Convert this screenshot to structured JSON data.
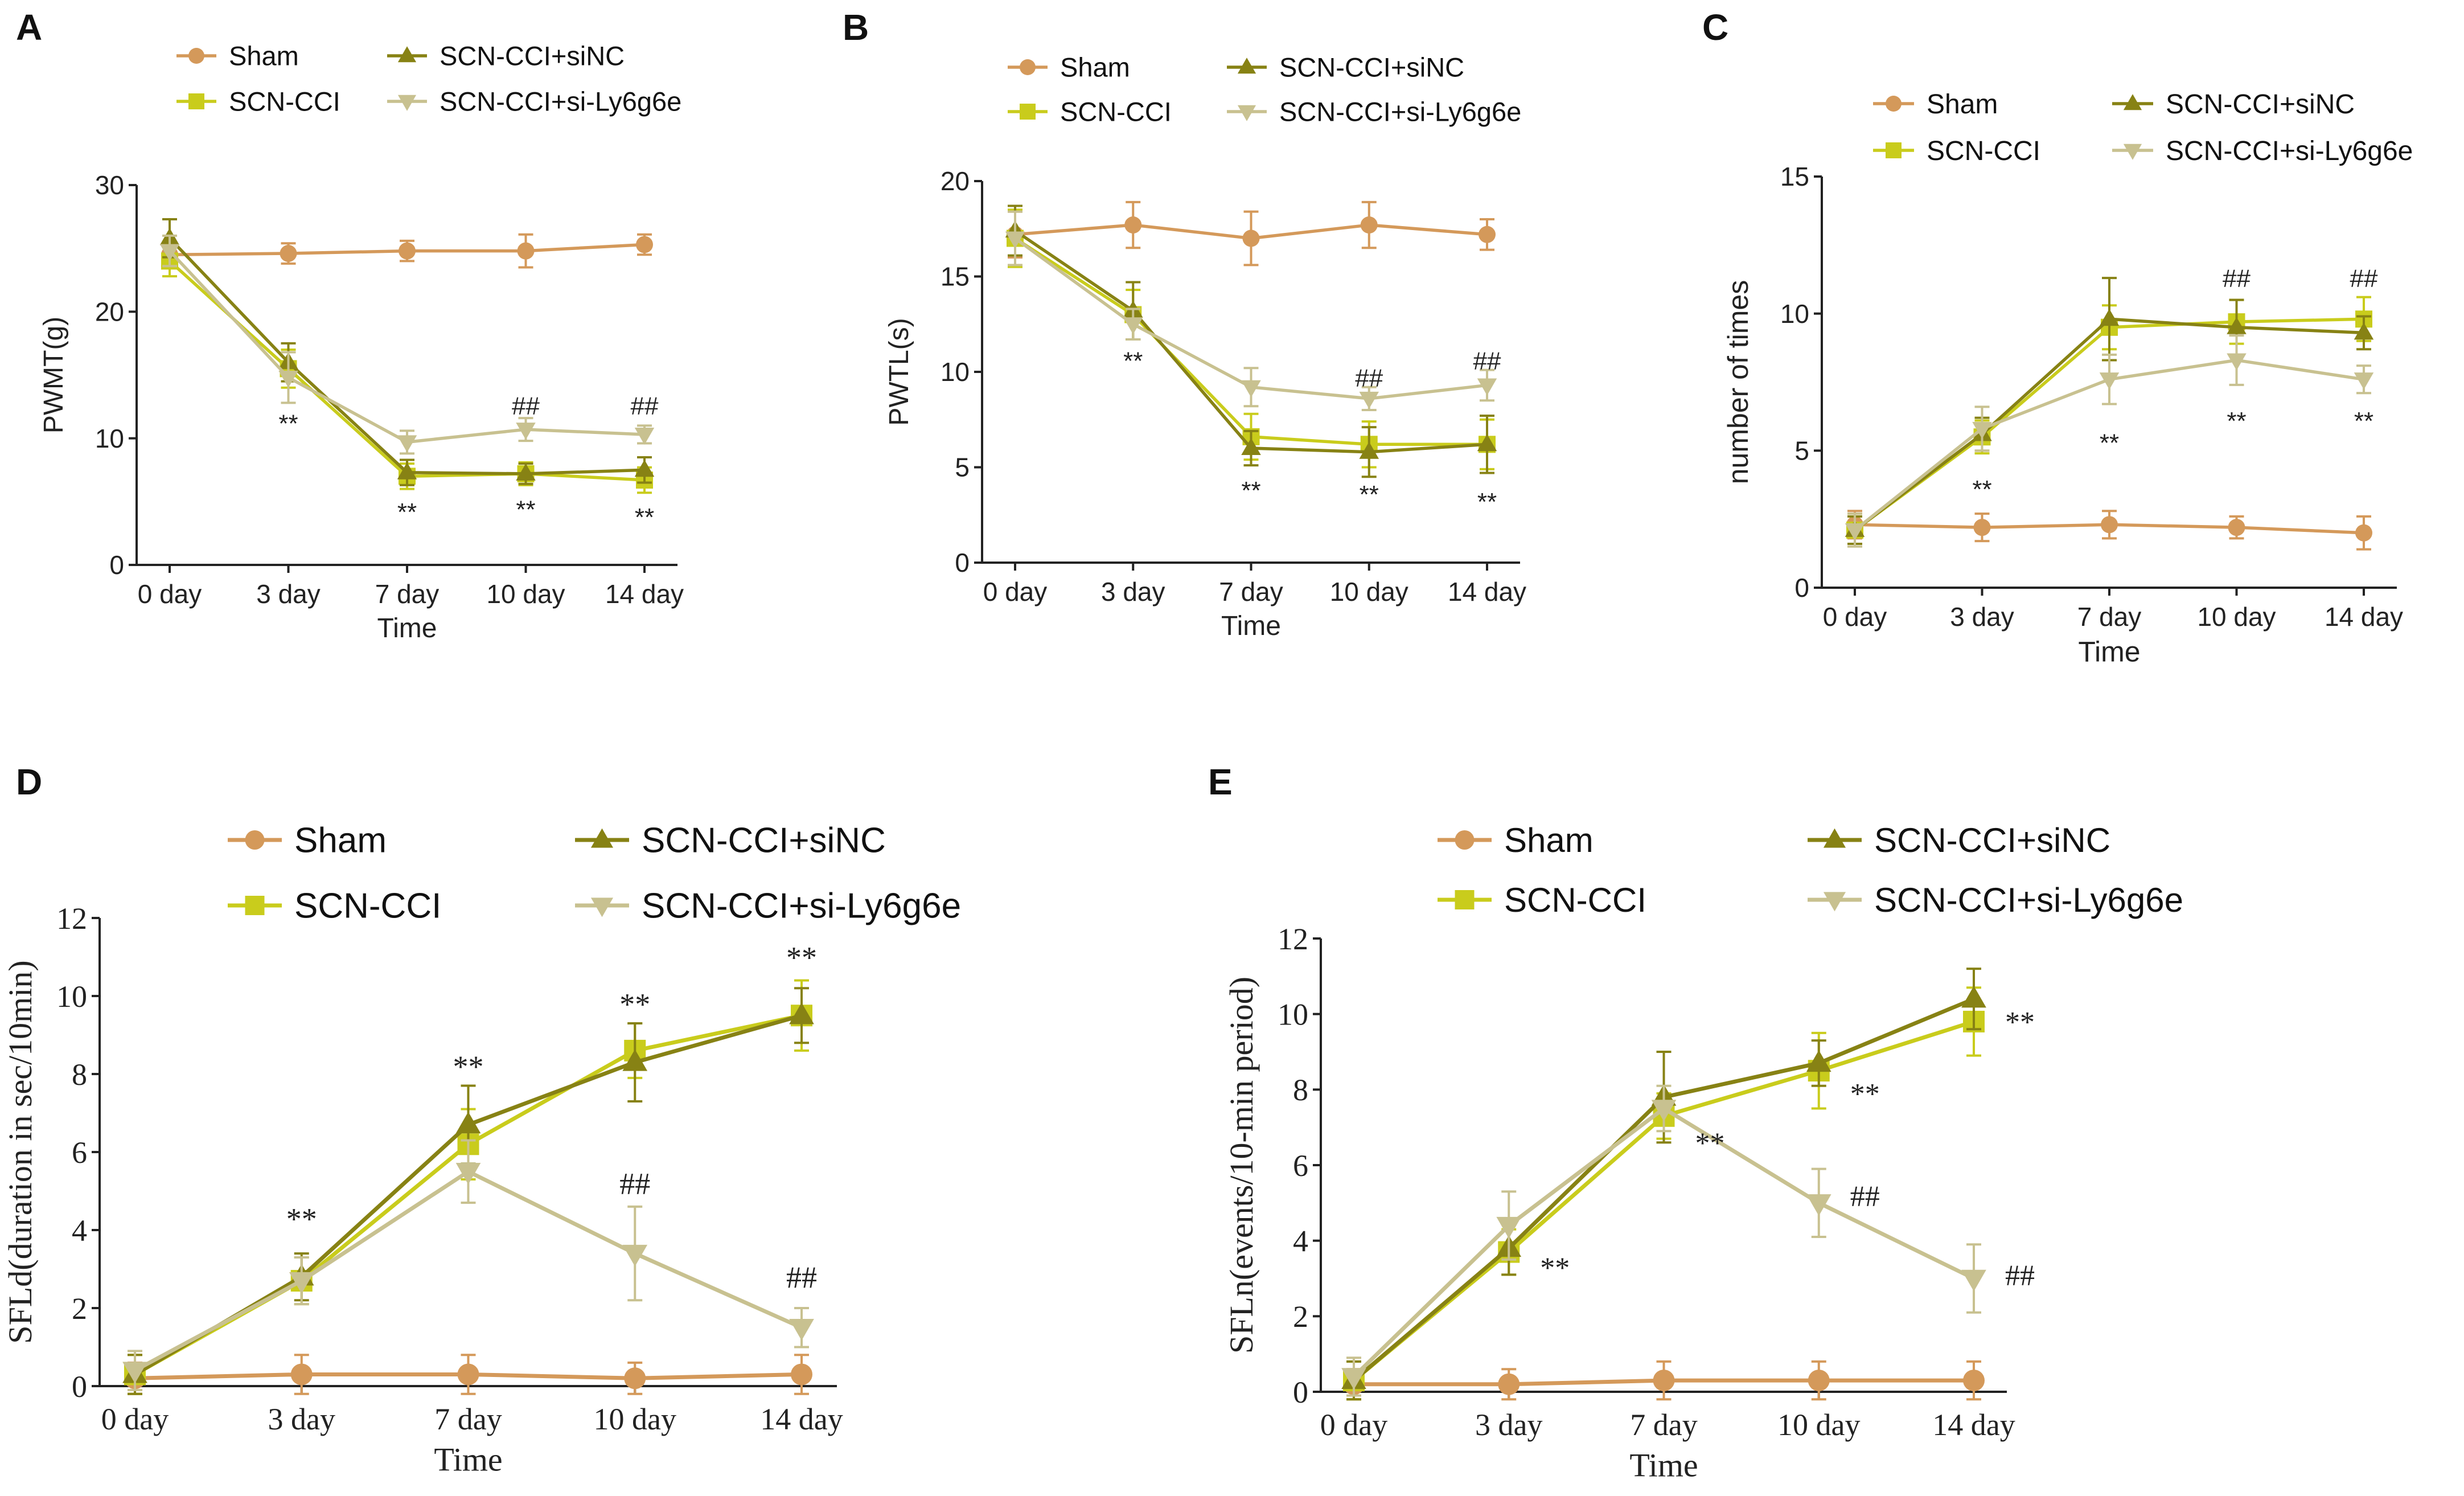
{
  "colors": {
    "sham": "#d4995a",
    "scn_cci": "#c9cc1c",
    "sincc": "#878214",
    "si_ly6g6e": "#c8c190",
    "axis": "#222222",
    "annotation": "#222222"
  },
  "chart_data": [
    {
      "panel": "A",
      "type": "line",
      "title": "",
      "xlabel": "Time",
      "ylabel": "PWMT(g)",
      "categories": [
        "0 day",
        "3 day",
        "7 day",
        "10 day",
        "14 day"
      ],
      "ylim": [
        0,
        30
      ],
      "yticks": [
        0,
        10,
        20,
        30
      ],
      "ytick_labels": [
        "0",
        "10",
        "20",
        "30"
      ],
      "legend": {
        "placement": "top",
        "entries": [
          "Sham",
          "SCN-CCI+siNC",
          "SCN-CCI",
          "SCN-CCI+si-Ly6g6e"
        ]
      },
      "series": [
        {
          "name": "Sham",
          "key": "sham",
          "marker": "circle",
          "values": [
            24.5,
            24.6,
            24.8,
            24.8,
            25.3
          ],
          "errors": [
            1.0,
            0.8,
            0.8,
            1.3,
            0.8
          ]
        },
        {
          "name": "SCN-CCI",
          "key": "scn_cci",
          "marker": "square",
          "values": [
            24.0,
            15.5,
            7.0,
            7.2,
            6.7
          ],
          "errors": [
            1.2,
            1.5,
            1.0,
            0.9,
            1.0
          ]
        },
        {
          "name": "SCN-CCI+siNC",
          "key": "sincc",
          "marker": "triangle-up",
          "values": [
            25.8,
            16.0,
            7.3,
            7.2,
            7.5
          ],
          "errors": [
            1.5,
            1.5,
            1.0,
            0.8,
            1.0
          ]
        },
        {
          "name": "SCN-CCI+si-Ly6g6e",
          "key": "si_ly6g6e",
          "marker": "triangle-down",
          "values": [
            24.8,
            14.8,
            9.7,
            10.7,
            10.3
          ],
          "errors": [
            1.2,
            2.0,
            0.9,
            0.9,
            0.7
          ]
        }
      ],
      "annotations": [
        {
          "text": "**",
          "cat": 1,
          "y": 11.2
        },
        {
          "text": "**",
          "cat": 2,
          "y": 4.2
        },
        {
          "text": "**",
          "cat": 3,
          "y": 4.4
        },
        {
          "text": "**",
          "cat": 4,
          "y": 3.8
        },
        {
          "text": "##",
          "cat": 3,
          "y": 12.6
        },
        {
          "text": "##",
          "cat": 4,
          "y": 12.6
        }
      ]
    },
    {
      "panel": "B",
      "type": "line",
      "title": "",
      "xlabel": "Time",
      "ylabel": "PWTL(s)",
      "categories": [
        "0 day",
        "3 day",
        "7 day",
        "10 day",
        "14 day"
      ],
      "ylim": [
        0,
        20
      ],
      "yticks": [
        0,
        5,
        10,
        15,
        20
      ],
      "ytick_labels": [
        "0",
        "5",
        "10",
        "15",
        "20"
      ],
      "legend": {
        "placement": "top",
        "entries": [
          "Sham",
          "SCN-CCI+siNC",
          "SCN-CCI",
          "SCN-CCI+si-Ly6g6e"
        ]
      },
      "series": [
        {
          "name": "Sham",
          "key": "sham",
          "marker": "circle",
          "values": [
            17.2,
            17.7,
            17.0,
            17.7,
            17.2
          ],
          "errors": [
            1.2,
            1.2,
            1.4,
            1.2,
            0.8
          ]
        },
        {
          "name": "SCN-CCI",
          "key": "scn_cci",
          "marker": "square",
          "values": [
            17.0,
            13.0,
            6.6,
            6.2,
            6.2
          ],
          "errors": [
            1.5,
            1.3,
            1.2,
            1.2,
            1.3
          ]
        },
        {
          "name": "SCN-CCI+siNC",
          "key": "sincc",
          "marker": "triangle-up",
          "values": [
            17.4,
            13.2,
            6.0,
            5.8,
            6.2
          ],
          "errors": [
            1.3,
            1.5,
            0.9,
            1.3,
            1.5
          ]
        },
        {
          "name": "SCN-CCI+si-Ly6g6e",
          "key": "si_ly6g6e",
          "marker": "triangle-down",
          "values": [
            17.0,
            12.5,
            9.2,
            8.6,
            9.3
          ],
          "errors": [
            1.4,
            0.8,
            1.0,
            0.6,
            0.8
          ]
        }
      ],
      "annotations": [
        {
          "text": "**",
          "cat": 1,
          "y": 10.6
        },
        {
          "text": "**",
          "cat": 2,
          "y": 3.8
        },
        {
          "text": "**",
          "cat": 3,
          "y": 3.6
        },
        {
          "text": "**",
          "cat": 4,
          "y": 3.2
        },
        {
          "text": "##",
          "cat": 3,
          "y": 9.7
        },
        {
          "text": "##",
          "cat": 4,
          "y": 10.6
        }
      ]
    },
    {
      "panel": "C",
      "type": "line",
      "title": "",
      "xlabel": "Time",
      "ylabel": "number of times",
      "categories": [
        "0 day",
        "3 day",
        "7 day",
        "10 day",
        "14 day"
      ],
      "ylim": [
        0,
        15
      ],
      "yticks": [
        0,
        5,
        10,
        15
      ],
      "ytick_labels": [
        "0",
        "5",
        "10",
        "15"
      ],
      "legend": {
        "placement": "top",
        "entries": [
          "Sham",
          "SCN-CCI+siNC",
          "SCN-CCI",
          "SCN-CCI+si-Ly6g6e"
        ]
      },
      "series": [
        {
          "name": "Sham",
          "key": "sham",
          "marker": "circle",
          "values": [
            2.3,
            2.2,
            2.3,
            2.2,
            2.0
          ],
          "errors": [
            0.5,
            0.5,
            0.5,
            0.4,
            0.6
          ]
        },
        {
          "name": "SCN-CCI",
          "key": "scn_cci",
          "marker": "square",
          "values": [
            2.1,
            5.5,
            9.5,
            9.7,
            9.8
          ],
          "errors": [
            0.5,
            0.6,
            0.8,
            0.8,
            0.8
          ]
        },
        {
          "name": "SCN-CCI+siNC",
          "key": "sincc",
          "marker": "triangle-up",
          "values": [
            2.1,
            5.6,
            9.8,
            9.5,
            9.3
          ],
          "errors": [
            0.5,
            0.6,
            1.5,
            1.0,
            0.6
          ]
        },
        {
          "name": "SCN-CCI+si-Ly6g6e",
          "key": "si_ly6g6e",
          "marker": "triangle-down",
          "values": [
            2.1,
            5.8,
            7.6,
            8.3,
            7.6
          ],
          "errors": [
            0.6,
            0.8,
            0.9,
            0.9,
            0.5
          ]
        }
      ],
      "annotations": [
        {
          "text": "**",
          "cat": 1,
          "y": 3.6
        },
        {
          "text": "**",
          "cat": 2,
          "y": 5.3
        },
        {
          "text": "**",
          "cat": 3,
          "y": 6.1
        },
        {
          "text": "**",
          "cat": 4,
          "y": 6.1
        },
        {
          "text": "##",
          "cat": 3,
          "y": 11.3
        },
        {
          "text": "##",
          "cat": 4,
          "y": 11.3
        }
      ]
    },
    {
      "panel": "D",
      "type": "line",
      "title": "",
      "xlabel": "Time",
      "ylabel": "SFLd(duration in sec/10min)",
      "categories": [
        "0 day",
        "3 day",
        "7 day",
        "10 day",
        "14 day"
      ],
      "ylim": [
        0,
        12
      ],
      "yticks": [
        0,
        2,
        4,
        6,
        8,
        10,
        12
      ],
      "ytick_labels": [
        "0",
        "2",
        "4",
        "6",
        "8",
        "10",
        "12"
      ],
      "legend": {
        "placement": "top",
        "entries": [
          "Sham",
          "SCN-CCI+siNC",
          "SCN-CCI",
          "SCN-CCI+si-Ly6g6e"
        ]
      },
      "series": [
        {
          "name": "Sham",
          "key": "sham",
          "marker": "circle",
          "values": [
            0.2,
            0.3,
            0.3,
            0.2,
            0.3
          ],
          "errors": [
            0.4,
            0.5,
            0.5,
            0.4,
            0.5
          ]
        },
        {
          "name": "SCN-CCI",
          "key": "scn_cci",
          "marker": "square",
          "values": [
            0.3,
            2.7,
            6.2,
            8.6,
            9.5
          ],
          "errors": [
            0.5,
            0.6,
            0.9,
            0.7,
            0.9
          ]
        },
        {
          "name": "SCN-CCI+siNC",
          "key": "sincc",
          "marker": "triangle-up",
          "values": [
            0.3,
            2.8,
            6.7,
            8.3,
            9.5
          ],
          "errors": [
            0.5,
            0.6,
            1.0,
            1.0,
            0.7
          ]
        },
        {
          "name": "SCN-CCI+si-Ly6g6e",
          "key": "si_ly6g6e",
          "marker": "triangle-down",
          "values": [
            0.4,
            2.7,
            5.5,
            3.4,
            1.5
          ],
          "errors": [
            0.5,
            0.6,
            0.8,
            1.2,
            0.5
          ]
        }
      ],
      "annotations": [
        {
          "text": "**",
          "cat": 1,
          "y": 4.3
        },
        {
          "text": "**",
          "cat": 2,
          "y": 8.2
        },
        {
          "text": "**",
          "cat": 3,
          "y": 9.8
        },
        {
          "text": "**",
          "cat": 4,
          "y": 11.0
        },
        {
          "text": "##",
          "cat": 3,
          "y": 5.2
        },
        {
          "text": "##",
          "cat": 4,
          "y": 2.8
        }
      ]
    },
    {
      "panel": "E",
      "type": "line",
      "title": "",
      "xlabel": "Time",
      "ylabel": "SFLn(events/10-min period)",
      "categories": [
        "0 day",
        "3 day",
        "7 day",
        "10 day",
        "14 day"
      ],
      "ylim": [
        0,
        12
      ],
      "yticks": [
        0,
        2,
        4,
        6,
        8,
        10,
        12
      ],
      "ytick_labels": [
        "0",
        "2",
        "4",
        "6",
        "8",
        "10",
        "12"
      ],
      "legend": {
        "placement": "top",
        "entries": [
          "Sham",
          "SCN-CCI+siNC",
          "SCN-CCI",
          "SCN-CCI+si-Ly6g6e"
        ]
      },
      "series": [
        {
          "name": "Sham",
          "key": "sham",
          "marker": "circle",
          "values": [
            0.2,
            0.2,
            0.3,
            0.3,
            0.3
          ],
          "errors": [
            0.4,
            0.4,
            0.5,
            0.5,
            0.5
          ]
        },
        {
          "name": "SCN-CCI",
          "key": "scn_cci",
          "marker": "square",
          "values": [
            0.3,
            3.7,
            7.3,
            8.5,
            9.8
          ],
          "errors": [
            0.5,
            0.6,
            0.6,
            1.0,
            0.9
          ]
        },
        {
          "name": "SCN-CCI+siNC",
          "key": "sincc",
          "marker": "triangle-up",
          "values": [
            0.3,
            3.8,
            7.8,
            8.7,
            10.4
          ],
          "errors": [
            0.5,
            0.7,
            1.2,
            0.6,
            0.8
          ]
        },
        {
          "name": "SCN-CCI+si-Ly6g6e",
          "key": "si_ly6g6e",
          "marker": "triangle-down",
          "values": [
            0.4,
            4.4,
            7.5,
            5.0,
            3.0
          ],
          "errors": [
            0.5,
            0.9,
            0.6,
            0.9,
            0.9
          ]
        }
      ],
      "annotations": [
        {
          "text": "**",
          "cat": 1,
          "y": 3.3,
          "side": "right"
        },
        {
          "text": "**",
          "cat": 2,
          "y": 6.6,
          "side": "right"
        },
        {
          "text": "**",
          "cat": 3,
          "y": 7.9,
          "side": "right"
        },
        {
          "text": "**",
          "cat": 4,
          "y": 9.8,
          "side": "right"
        },
        {
          "text": "##",
          "cat": 3,
          "y": 5.2,
          "side": "right"
        },
        {
          "text": "##",
          "cat": 4,
          "y": 3.1,
          "side": "right"
        }
      ]
    }
  ]
}
